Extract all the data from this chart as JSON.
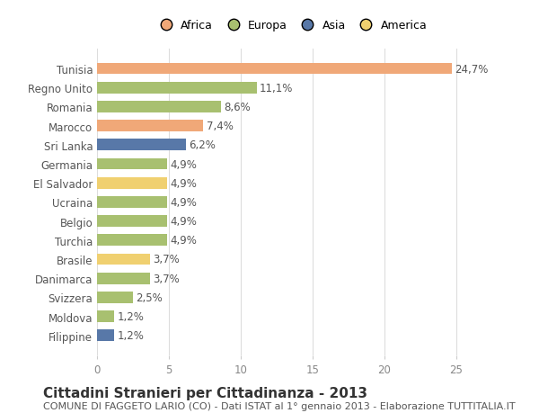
{
  "countries": [
    "Tunisia",
    "Regno Unito",
    "Romania",
    "Marocco",
    "Sri Lanka",
    "Germania",
    "El Salvador",
    "Ucraina",
    "Belgio",
    "Turchia",
    "Brasile",
    "Danimarca",
    "Svizzera",
    "Moldova",
    "Filippine"
  ],
  "values": [
    24.7,
    11.1,
    8.6,
    7.4,
    6.2,
    4.9,
    4.9,
    4.9,
    4.9,
    4.9,
    3.7,
    3.7,
    2.5,
    1.2,
    1.2
  ],
  "labels": [
    "24,7%",
    "11,1%",
    "8,6%",
    "7,4%",
    "6,2%",
    "4,9%",
    "4,9%",
    "4,9%",
    "4,9%",
    "4,9%",
    "3,7%",
    "3,7%",
    "2,5%",
    "1,2%",
    "1,2%"
  ],
  "bar_colors": [
    "#F0A878",
    "#A8C070",
    "#A8C070",
    "#F0A878",
    "#5878A8",
    "#A8C070",
    "#F0D070",
    "#A8C070",
    "#A8C070",
    "#A8C070",
    "#F0D070",
    "#A8C070",
    "#A8C070",
    "#A8C070",
    "#5878A8"
  ],
  "xlim": [
    0,
    27
  ],
  "xticks": [
    0,
    5,
    10,
    15,
    20,
    25
  ],
  "title": "Cittadini Stranieri per Cittadinanza - 2013",
  "subtitle": "COMUNE DI FAGGETO LARIO (CO) - Dati ISTAT al 1° gennaio 2013 - Elaborazione TUTTITALIA.IT",
  "legend_labels": [
    "Africa",
    "Europa",
    "Asia",
    "America"
  ],
  "legend_colors": [
    "#F0A878",
    "#A8C070",
    "#5878A8",
    "#F0D070"
  ],
  "background_color": "#ffffff",
  "grid_color": "#dddddd",
  "bar_height": 0.6,
  "label_fontsize": 8.5,
  "title_fontsize": 11,
  "subtitle_fontsize": 8,
  "tick_fontsize": 8.5
}
